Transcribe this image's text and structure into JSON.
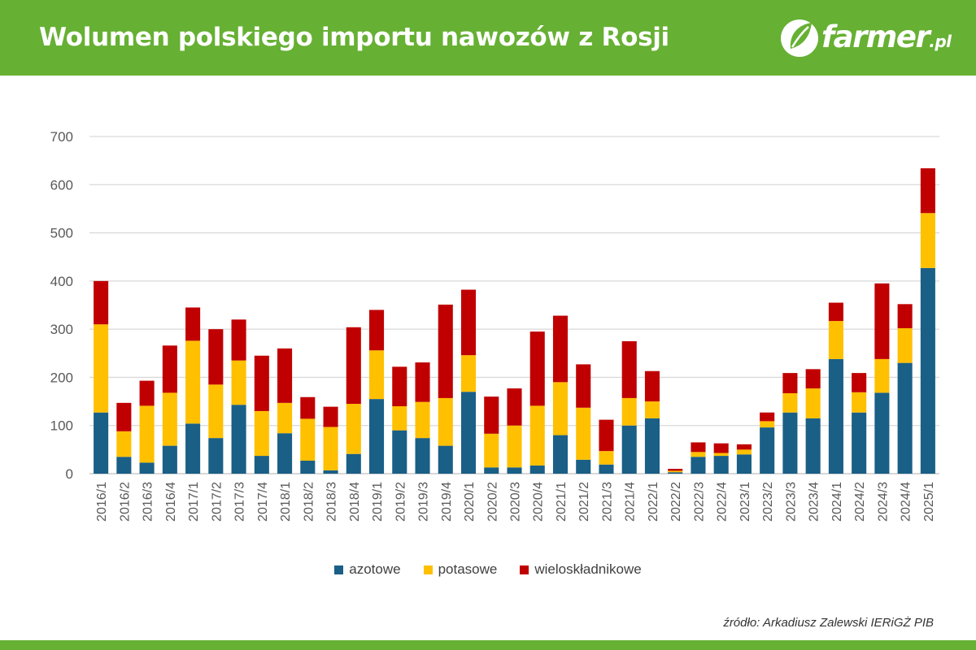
{
  "header": {
    "title": "Wolumen polskiego importu nawozów z Rosji",
    "logo_text": "farmer",
    "logo_tld": ".pl",
    "background_color": "#66b033"
  },
  "source": "źródło: Arkadiusz Zalewski IERiGŻ PIB",
  "colors": {
    "azotowe": "#1a5f86",
    "potasowe": "#ffc000",
    "wieloskladnikowe": "#c00000",
    "grid": "#d9d9d9",
    "axis_text": "#595959"
  },
  "chart_data": {
    "type": "bar",
    "stacked": true,
    "title": "",
    "xlabel": "",
    "ylabel": "",
    "ylim": [
      0,
      700
    ],
    "yticks": [
      0,
      100,
      200,
      300,
      400,
      500,
      600,
      700
    ],
    "grid": true,
    "legend_position": "bottom",
    "categories": [
      "2016/1",
      "2016/2",
      "2016/3",
      "2016/4",
      "2017/1",
      "2017/2",
      "2017/3",
      "2017/4",
      "2018/1",
      "2018/2",
      "2018/3",
      "2018/4",
      "2019/1",
      "2019/2",
      "2019/3",
      "2019/4",
      "2020/1",
      "2020/2",
      "2020/3",
      "2020/4",
      "2021/1",
      "2021/2",
      "2021/3",
      "2021/4",
      "2022/1",
      "2022/2",
      "2022/3",
      "2022/4",
      "2023/1",
      "2023/2",
      "2023/3",
      "2023/4",
      "2024/1",
      "2024/2",
      "2024/3",
      "2024/4",
      "2025/1"
    ],
    "series": [
      {
        "name": "azotowe",
        "color": "#1a5f86",
        "values": [
          127,
          35,
          23,
          58,
          104,
          74,
          143,
          37,
          84,
          27,
          7,
          41,
          155,
          90,
          74,
          58,
          170,
          13,
          13,
          17,
          80,
          29,
          19,
          100,
          115,
          3,
          35,
          37,
          40,
          96,
          127,
          115,
          238,
          127,
          168,
          230,
          427
        ]
      },
      {
        "name": "potasowe",
        "color": "#ffc000",
        "values": [
          183,
          53,
          118,
          110,
          172,
          111,
          92,
          93,
          63,
          87,
          90,
          104,
          101,
          50,
          75,
          99,
          76,
          70,
          87,
          124,
          110,
          108,
          28,
          57,
          35,
          3,
          10,
          6,
          10,
          13,
          40,
          62,
          79,
          42,
          70,
          72,
          114
        ]
      },
      {
        "name": "wieloskładnikowe",
        "color": "#c00000",
        "values": [
          90,
          59,
          52,
          98,
          69,
          115,
          85,
          115,
          113,
          45,
          42,
          159,
          84,
          82,
          82,
          194,
          136,
          77,
          77,
          154,
          138,
          90,
          65,
          118,
          63,
          4,
          20,
          20,
          11,
          18,
          42,
          40,
          38,
          40,
          157,
          50,
          93
        ]
      }
    ]
  }
}
